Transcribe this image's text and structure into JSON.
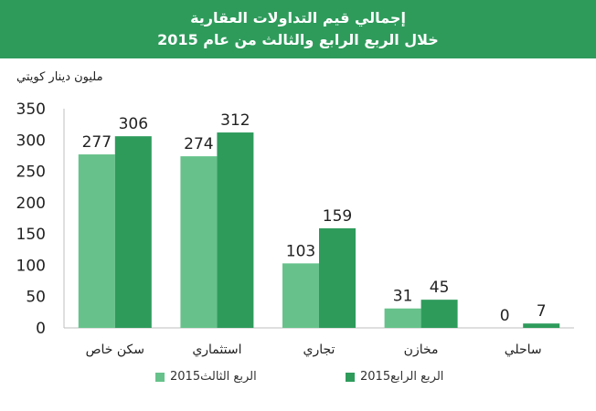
{
  "header": {
    "title_line1": "إجمالي قيم التداولات العقارية",
    "title_line2": "خلال الربع الرابع والثالث من عام  2015"
  },
  "unit_label": "مليون دينار كويتي",
  "colors": {
    "band": "#2e9b5b",
    "q3": "#66c28a",
    "q4": "#2e9b5b"
  },
  "chart_data": {
    "type": "bar",
    "categories": [
      "سكن خاص",
      "استثماري",
      "تجاري",
      "مخازن",
      "ساحلي"
    ],
    "series": [
      {
        "name": "الربع الثالث2015",
        "values": [
          277,
          274,
          103,
          31,
          0
        ]
      },
      {
        "name": "الربع الرابع2015",
        "values": [
          306,
          312,
          159,
          45,
          7
        ]
      }
    ],
    "ylim": [
      0,
      350
    ],
    "yticks": [
      "0",
      "50",
      "100",
      "150",
      "200",
      "250",
      "300",
      "350"
    ],
    "ylabel": "مليون دينار كويتي",
    "legend_position": "bottom",
    "grid": false
  },
  "legend": {
    "items": [
      {
        "label": "الربع الثالث2015"
      },
      {
        "label": "الربع الرابع2015"
      }
    ]
  }
}
